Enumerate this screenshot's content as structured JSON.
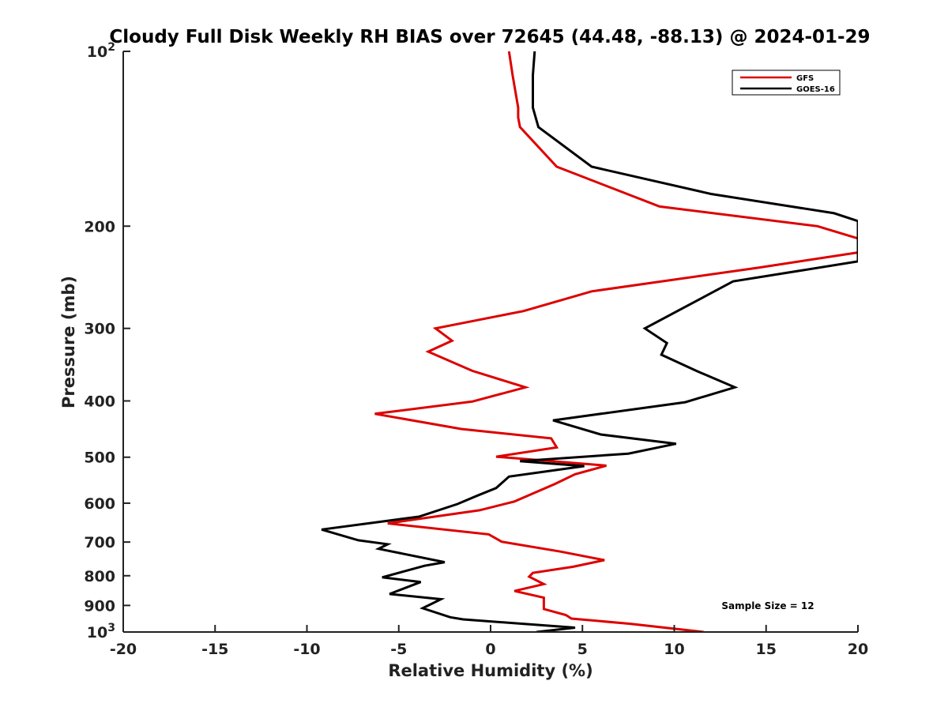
{
  "chart_data": {
    "type": "line",
    "title": "Cloudy Full Disk Weekly RH BIAS over 72645 (44.48, -88.13) @ 2024-01-29",
    "xlabel": "Relative Humidity (%)",
    "ylabel": "Pressure (mb)",
    "xlim": [
      -20,
      20
    ],
    "ylim": [
      100,
      1000
    ],
    "y_scale": "log",
    "y_reversed": true,
    "grid": false,
    "x_ticks": [
      "-20",
      "-15",
      "-10",
      "-5",
      "0",
      "5",
      "10",
      "15",
      "20"
    ],
    "y_ticks": [
      {
        "value": 100,
        "base": "10",
        "exp": "2"
      },
      {
        "value": 200,
        "label": "200"
      },
      {
        "value": 300,
        "label": "300"
      },
      {
        "value": 400,
        "label": "400"
      },
      {
        "value": 500,
        "label": "500"
      },
      {
        "value": 600,
        "label": "600"
      },
      {
        "value": 700,
        "label": "700"
      },
      {
        "value": 800,
        "label": "800"
      },
      {
        "value": 900,
        "label": "900"
      },
      {
        "value": 1000,
        "base": "10",
        "exp": "3"
      }
    ],
    "legend_position": "top-right",
    "annotation": "Sample Size = 12",
    "series": [
      {
        "name": "GFS",
        "color": "#dd0000",
        "points": [
          [
            1.0,
            100
          ],
          [
            1.2,
            110
          ],
          [
            1.5,
            125
          ],
          [
            1.5,
            130
          ],
          [
            1.6,
            135
          ],
          [
            3.6,
            158
          ],
          [
            9.2,
            185
          ],
          [
            17.8,
            200
          ],
          [
            20.0,
            210
          ],
          [
            20.0,
            222
          ],
          [
            14.5,
            236
          ],
          [
            5.5,
            259
          ],
          [
            1.8,
            280
          ],
          [
            -3.0,
            300
          ],
          [
            -2.1,
            315
          ],
          [
            -3.4,
            329
          ],
          [
            -1.0,
            355
          ],
          [
            1.9,
            379
          ],
          [
            -1.0,
            401
          ],
          [
            -6.3,
            421
          ],
          [
            -1.6,
            447
          ],
          [
            3.3,
            464
          ],
          [
            3.6,
            481
          ],
          [
            0.3,
            499
          ],
          [
            6.3,
            517
          ],
          [
            4.6,
            535
          ],
          [
            3.5,
            556
          ],
          [
            1.3,
            596
          ],
          [
            -0.6,
            617
          ],
          [
            -5.6,
            650
          ],
          [
            -0.1,
            679
          ],
          [
            0.6,
            699
          ],
          [
            3.8,
            727
          ],
          [
            6.2,
            752
          ],
          [
            4.5,
            772
          ],
          [
            2.3,
            791
          ],
          [
            2.1,
            803
          ],
          [
            2.9,
            827
          ],
          [
            1.3,
            850
          ],
          [
            2.9,
            873
          ],
          [
            2.9,
            900
          ],
          [
            2.9,
            913
          ],
          [
            4.1,
            935
          ],
          [
            4.4,
            948
          ],
          [
            7.6,
            968
          ],
          [
            11.6,
            1000
          ]
        ]
      },
      {
        "name": "GOES-16",
        "color": "#000000",
        "points": [
          [
            2.4,
            100
          ],
          [
            2.3,
            110
          ],
          [
            2.3,
            125
          ],
          [
            2.6,
            135
          ],
          [
            5.5,
            158
          ],
          [
            12.0,
            176
          ],
          [
            18.7,
            190
          ],
          [
            20.0,
            196
          ],
          [
            20.0,
            230
          ],
          [
            13.2,
            249
          ],
          [
            8.4,
            300
          ],
          [
            9.6,
            318
          ],
          [
            9.3,
            333
          ],
          [
            11.2,
            355
          ],
          [
            13.3,
            379
          ],
          [
            10.6,
            402
          ],
          [
            3.4,
            432
          ],
          [
            6.0,
            457
          ],
          [
            10.1,
            474
          ],
          [
            7.5,
            493
          ],
          [
            1.6,
            508
          ],
          [
            5.1,
            518
          ],
          [
            1.0,
            540
          ],
          [
            0.3,
            565
          ],
          [
            -0.7,
            582
          ],
          [
            -1.8,
            602
          ],
          [
            -3.9,
            633
          ],
          [
            -9.2,
            666
          ],
          [
            -7.2,
            695
          ],
          [
            -5.6,
            706
          ],
          [
            -6.1,
            719
          ],
          [
            -2.5,
            758
          ],
          [
            -3.6,
            769
          ],
          [
            -5.9,
            805
          ],
          [
            -3.8,
            820
          ],
          [
            -5.5,
            860
          ],
          [
            -2.7,
            878
          ],
          [
            -3.7,
            910
          ],
          [
            -2.2,
            943
          ],
          [
            -1.5,
            951
          ],
          [
            4.6,
            983
          ],
          [
            2.5,
            1000
          ]
        ]
      }
    ]
  }
}
